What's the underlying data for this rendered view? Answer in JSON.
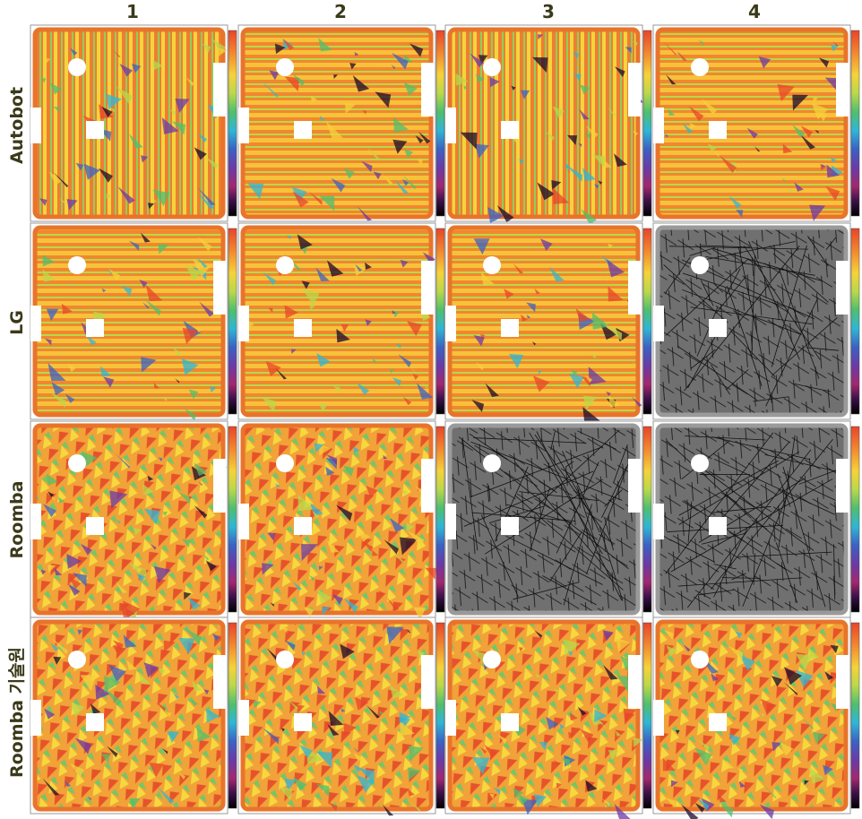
{
  "columns": [
    "1",
    "2",
    "3",
    "4"
  ],
  "rows": [
    "Autobot",
    "LG",
    "Roomba",
    "Roomba 기술원"
  ]
}
